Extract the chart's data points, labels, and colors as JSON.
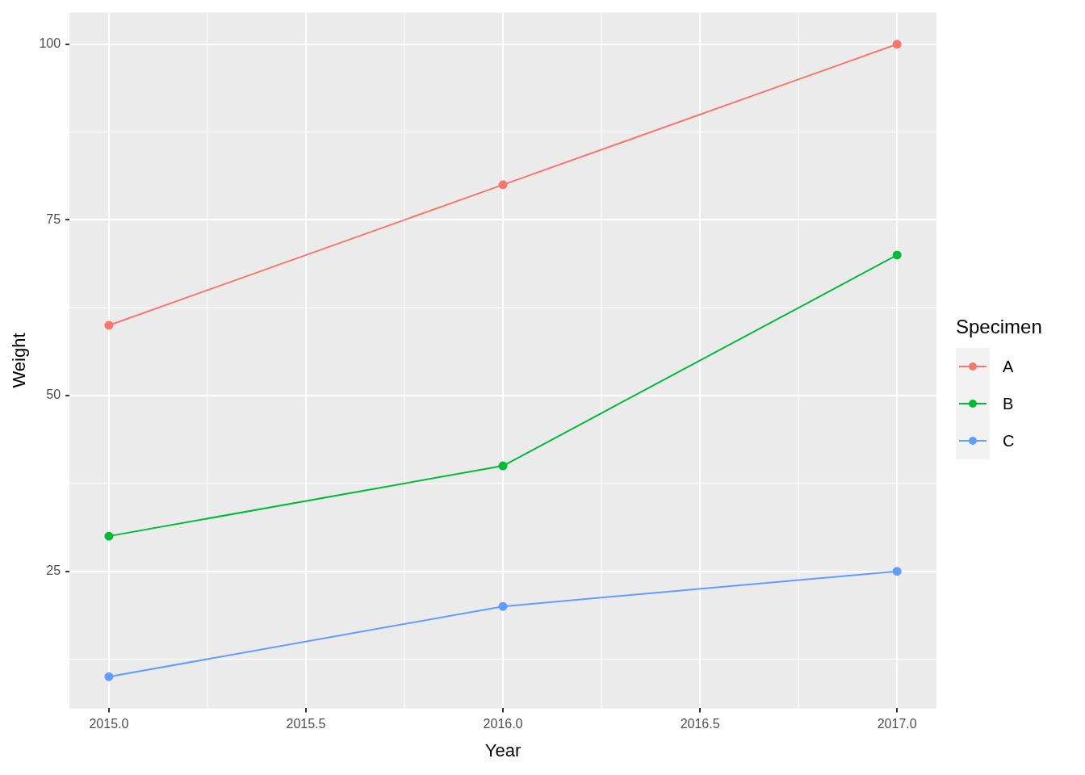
{
  "chart_data": {
    "type": "line",
    "xlabel": "Year",
    "ylabel": "Weight",
    "legend_title": "Specimen",
    "legend": "right",
    "grid": true,
    "marker": "circle",
    "line_style": "solid",
    "x": [
      2015,
      2016,
      2017
    ],
    "xlim": [
      2014.9,
      2017.1
    ],
    "xticks": [
      {
        "value": 2015,
        "label": "2015.0"
      },
      {
        "value": 2015.5,
        "label": "2015.5"
      },
      {
        "value": 2016,
        "label": "2016.0"
      },
      {
        "value": 2016.5,
        "label": "2016.5"
      },
      {
        "value": 2017,
        "label": "2017.0"
      }
    ],
    "ylim": [
      5.5,
      104.5
    ],
    "yticks": [
      25,
      50,
      75,
      100
    ],
    "series": [
      {
        "name": "A",
        "color": "#f8766d",
        "values": [
          60,
          80,
          100
        ]
      },
      {
        "name": "B",
        "color": "#00ba38",
        "values": [
          30,
          40,
          70
        ]
      },
      {
        "name": "C",
        "color": "#619cff",
        "values": [
          10,
          20,
          25
        ]
      }
    ]
  }
}
